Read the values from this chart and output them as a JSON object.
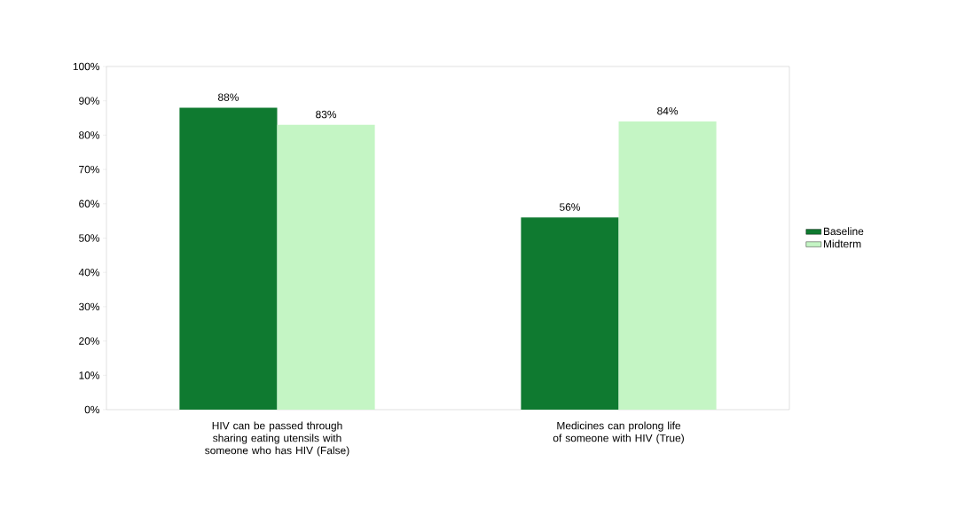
{
  "chart_data": {
    "type": "bar",
    "categories": [
      "HIV can be passed through sharing eating utensils with someone who has HIV (False)",
      "Medicines can prolong life of someone with HIV (True)"
    ],
    "series": [
      {
        "name": "Baseline",
        "color": "#0f7a30",
        "values": [
          88,
          56
        ],
        "value_labels": [
          "88%",
          "56%"
        ]
      },
      {
        "name": "Midterm",
        "color": "#c4f5c4",
        "values": [
          83,
          84
        ],
        "value_labels": [
          "83%",
          "84%"
        ]
      }
    ],
    "ylim": [
      0,
      100
    ],
    "yticks": [
      {
        "value": 0,
        "label": "0%"
      },
      {
        "value": 10,
        "label": "10%"
      },
      {
        "value": 20,
        "label": "20%"
      },
      {
        "value": 30,
        "label": "30%"
      },
      {
        "value": 40,
        "label": "40%"
      },
      {
        "value": 50,
        "label": "50%"
      },
      {
        "value": 60,
        "label": "60%"
      },
      {
        "value": 70,
        "label": "70%"
      },
      {
        "value": 80,
        "label": "80%"
      },
      {
        "value": 90,
        "label": "90%"
      },
      {
        "value": 100,
        "label": "100%"
      }
    ],
    "grid": false,
    "legend": "right"
  }
}
